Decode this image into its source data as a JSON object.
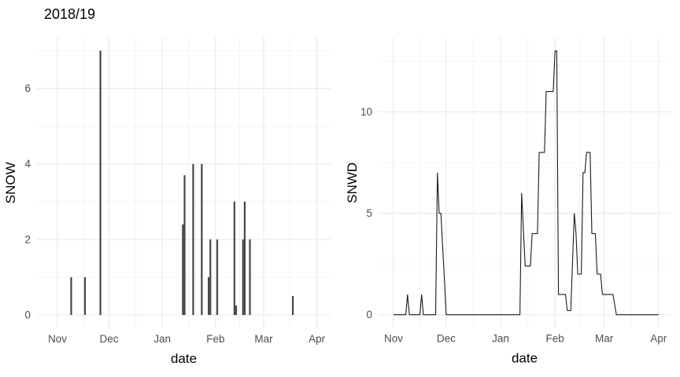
{
  "figure": {
    "title": "2018/19",
    "colors": {
      "background": "#ffffff",
      "bar": "#474747",
      "line": "#1a1a1a",
      "grid_major": "#e7e7e7",
      "grid_minor": "#f4f4f4",
      "tick_text": "#4d4d4d",
      "axis_title_text": "#000000"
    }
  },
  "chart_data": [
    {
      "type": "bar",
      "title": "2018/19",
      "xlabel": "date",
      "ylabel": "SNOW",
      "x_ticks": [
        "Nov",
        "Dec",
        "Jan",
        "Feb",
        "Mar",
        "Apr"
      ],
      "y_ticks": [
        "0",
        "2",
        "4",
        "6"
      ],
      "ylim": [
        -0.35,
        7.35
      ],
      "grid": "on",
      "legend": "none",
      "points": [
        {
          "date": "Nov 9",
          "value": 1.0
        },
        {
          "date": "Nov 17",
          "value": 1.0
        },
        {
          "date": "Nov 26",
          "value": 7.0
        },
        {
          "date": "Jan 13",
          "value": 2.4
        },
        {
          "date": "Jan 14",
          "value": 3.7
        },
        {
          "date": "Jan 19",
          "value": 4.0
        },
        {
          "date": "Jan 24",
          "value": 4.0
        },
        {
          "date": "Jan 28",
          "value": 1.0
        },
        {
          "date": "Jan 29",
          "value": 2.0
        },
        {
          "date": "Feb 2",
          "value": 2.0
        },
        {
          "date": "Feb 12",
          "value": 3.0
        },
        {
          "date": "Feb 13",
          "value": 0.25
        },
        {
          "date": "Feb 17",
          "value": 2.0
        },
        {
          "date": "Feb 18",
          "value": 3.0
        },
        {
          "date": "Feb 21",
          "value": 2.0
        },
        {
          "date": "Mar 18",
          "value": 0.5
        }
      ]
    },
    {
      "type": "line",
      "title": "",
      "xlabel": "date",
      "ylabel": "SNWD",
      "x_ticks": [
        "Nov",
        "Dec",
        "Jan",
        "Feb",
        "Mar",
        "Apr"
      ],
      "y_ticks": [
        "0",
        "5",
        "10"
      ],
      "ylim": [
        -0.65,
        13.65
      ],
      "grid": "on",
      "legend": "none",
      "points": [
        {
          "date": "Nov 1",
          "value": 0
        },
        {
          "date": "Nov 8",
          "value": 0
        },
        {
          "date": "Nov 9",
          "value": 1
        },
        {
          "date": "Nov 10",
          "value": 0
        },
        {
          "date": "Nov 16",
          "value": 0
        },
        {
          "date": "Nov 17",
          "value": 1
        },
        {
          "date": "Nov 18",
          "value": 0
        },
        {
          "date": "Nov 25",
          "value": 0
        },
        {
          "date": "Nov 26",
          "value": 7
        },
        {
          "date": "Nov 27",
          "value": 5
        },
        {
          "date": "Nov 28",
          "value": 5
        },
        {
          "date": "Nov 30",
          "value": 1.7
        },
        {
          "date": "Dec 1",
          "value": 0
        },
        {
          "date": "Jan 12",
          "value": 0
        },
        {
          "date": "Jan 13",
          "value": 6
        },
        {
          "date": "Jan 14",
          "value": 4.2
        },
        {
          "date": "Jan 15",
          "value": 2.4
        },
        {
          "date": "Jan 18",
          "value": 2.4
        },
        {
          "date": "Jan 19",
          "value": 4
        },
        {
          "date": "Jan 22",
          "value": 4
        },
        {
          "date": "Jan 23",
          "value": 8
        },
        {
          "date": "Jan 26",
          "value": 8
        },
        {
          "date": "Jan 27",
          "value": 11
        },
        {
          "date": "Jan 31",
          "value": 11
        },
        {
          "date": "Feb 1",
          "value": 13
        },
        {
          "date": "Feb 2",
          "value": 13
        },
        {
          "date": "Feb 3",
          "value": 1
        },
        {
          "date": "Feb 7",
          "value": 1
        },
        {
          "date": "Feb 8",
          "value": 0.2
        },
        {
          "date": "Feb 10",
          "value": 0.2
        },
        {
          "date": "Feb 12",
          "value": 5
        },
        {
          "date": "Feb 13",
          "value": 4
        },
        {
          "date": "Feb 14",
          "value": 2
        },
        {
          "date": "Feb 16",
          "value": 2
        },
        {
          "date": "Feb 17",
          "value": 7
        },
        {
          "date": "Feb 18",
          "value": 7
        },
        {
          "date": "Feb 19",
          "value": 8
        },
        {
          "date": "Feb 21",
          "value": 8
        },
        {
          "date": "Feb 22",
          "value": 4
        },
        {
          "date": "Feb 24",
          "value": 4
        },
        {
          "date": "Feb 25",
          "value": 2
        },
        {
          "date": "Feb 27",
          "value": 2
        },
        {
          "date": "Feb 28",
          "value": 1
        },
        {
          "date": "Mar 6",
          "value": 1
        },
        {
          "date": "Mar 8",
          "value": 0
        },
        {
          "date": "Apr 1",
          "value": 0
        }
      ]
    }
  ]
}
